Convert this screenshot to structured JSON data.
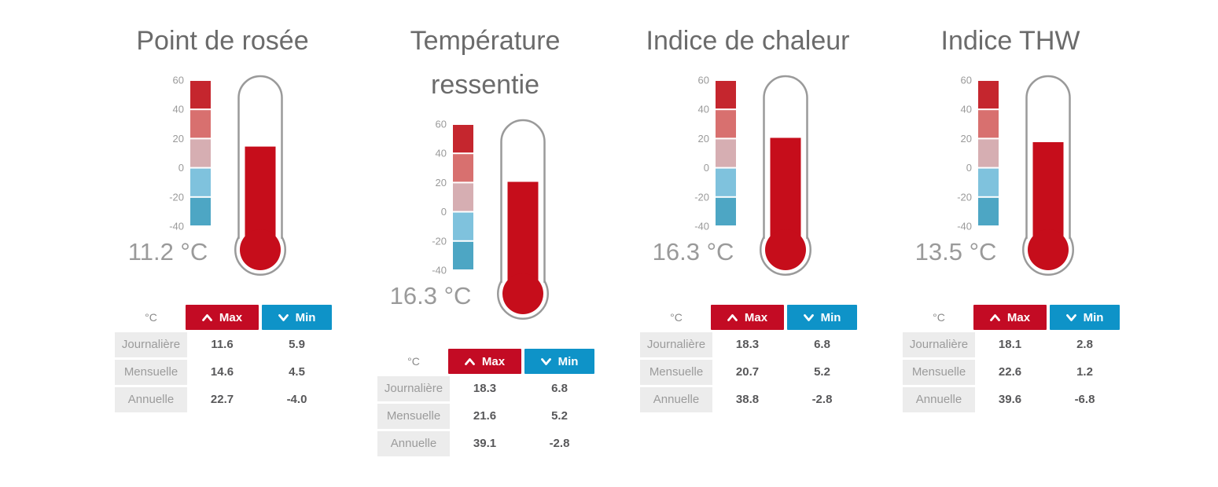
{
  "ui": {
    "unit_header": "°C",
    "max_label": "Max",
    "min_label": "Min"
  },
  "scale": {
    "ticks": [
      "60",
      "40",
      "20",
      "0",
      "-20",
      "-40"
    ],
    "block_colors": [
      "#c5262e",
      "#d8706f",
      "#d6aeb2",
      "#7fc2dd",
      "#4da6c4"
    ]
  },
  "colors": {
    "thermometer_fill_red": "#c60d1b",
    "max_button_red": "#c30b24",
    "min_button_blue": "#0e93c8",
    "title_gray": "#6b6b6b",
    "reading_gray": "#9a9a9a"
  },
  "panels": [
    {
      "title_lines": [
        "Point de rosée"
      ],
      "reading": "11.2 °C",
      "gauge_value_c": 11.2,
      "gauge_fill_top_c": 14.5,
      "rows": [
        {
          "label": "Journalière",
          "max": "11.6",
          "min": "5.9"
        },
        {
          "label": "Mensuelle",
          "max": "14.6",
          "min": "4.5"
        },
        {
          "label": "Annuelle",
          "max": "22.7",
          "min": "-4.0"
        }
      ]
    },
    {
      "title_lines": [
        "Température",
        "ressentie"
      ],
      "reading": "16.3 °C",
      "gauge_value_c": 16.3,
      "gauge_fill_top_c": 20.5,
      "rows": [
        {
          "label": "Journalière",
          "max": "18.3",
          "min": "6.8"
        },
        {
          "label": "Mensuelle",
          "max": "21.6",
          "min": "5.2"
        },
        {
          "label": "Annuelle",
          "max": "39.1",
          "min": "-2.8"
        }
      ]
    },
    {
      "title_lines": [
        "Indice de chaleur"
      ],
      "reading": "16.3 °C",
      "gauge_value_c": 16.3,
      "gauge_fill_top_c": 20.5,
      "rows": [
        {
          "label": "Journalière",
          "max": "18.3",
          "min": "6.8"
        },
        {
          "label": "Mensuelle",
          "max": "20.7",
          "min": "5.2"
        },
        {
          "label": "Annuelle",
          "max": "38.8",
          "min": "-2.8"
        }
      ]
    },
    {
      "title_lines": [
        "Indice THW"
      ],
      "reading": "13.5 °C",
      "gauge_value_c": 13.5,
      "gauge_fill_top_c": 17.5,
      "rows": [
        {
          "label": "Journalière",
          "max": "18.1",
          "min": "2.8"
        },
        {
          "label": "Mensuelle",
          "max": "22.6",
          "min": "1.2"
        },
        {
          "label": "Annuelle",
          "max": "39.6",
          "min": "-6.8"
        }
      ]
    }
  ],
  "chart_data": [
    {
      "type": "gauge",
      "title": "Point de rosée",
      "unit": "°C",
      "current_value": 11.2,
      "fill_level": 14.5,
      "scale": {
        "min": -40,
        "max": 60,
        "ticks": [
          60,
          40,
          20,
          0,
          -20,
          -40
        ]
      },
      "table": {
        "type": "table",
        "columns": [
          "°C",
          "Max",
          "Min"
        ],
        "rows": [
          [
            "Journalière",
            11.6,
            5.9
          ],
          [
            "Mensuelle",
            14.6,
            4.5
          ],
          [
            "Annuelle",
            22.7,
            -4.0
          ]
        ]
      }
    },
    {
      "type": "gauge",
      "title": "Température ressentie",
      "unit": "°C",
      "current_value": 16.3,
      "fill_level": 20.5,
      "scale": {
        "min": -40,
        "max": 60,
        "ticks": [
          60,
          40,
          20,
          0,
          -20,
          -40
        ]
      },
      "table": {
        "type": "table",
        "columns": [
          "°C",
          "Max",
          "Min"
        ],
        "rows": [
          [
            "Journalière",
            18.3,
            6.8
          ],
          [
            "Mensuelle",
            21.6,
            5.2
          ],
          [
            "Annuelle",
            39.1,
            -2.8
          ]
        ]
      }
    },
    {
      "type": "gauge",
      "title": "Indice de chaleur",
      "unit": "°C",
      "current_value": 16.3,
      "fill_level": 20.5,
      "scale": {
        "min": -40,
        "max": 60,
        "ticks": [
          60,
          40,
          20,
          0,
          -20,
          -40
        ]
      },
      "table": {
        "type": "table",
        "columns": [
          "°C",
          "Max",
          "Min"
        ],
        "rows": [
          [
            "Journalière",
            18.3,
            6.8
          ],
          [
            "Mensuelle",
            20.7,
            5.2
          ],
          [
            "Annuelle",
            38.8,
            -2.8
          ]
        ]
      }
    },
    {
      "type": "gauge",
      "title": "Indice THW",
      "unit": "°C",
      "current_value": 13.5,
      "fill_level": 17.5,
      "scale": {
        "min": -40,
        "max": 60,
        "ticks": [
          60,
          40,
          20,
          0,
          -20,
          -40
        ]
      },
      "table": {
        "type": "table",
        "columns": [
          "°C",
          "Max",
          "Min"
        ],
        "rows": [
          [
            "Journalière",
            18.1,
            2.8
          ],
          [
            "Mensuelle",
            22.6,
            1.2
          ],
          [
            "Annuelle",
            39.6,
            -6.8
          ]
        ]
      }
    }
  ]
}
